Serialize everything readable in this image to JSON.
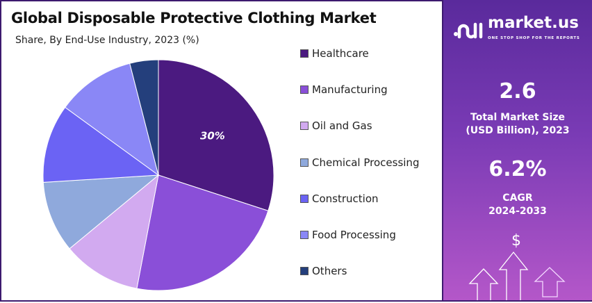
{
  "chart_data": {
    "type": "pie",
    "title": "Global Disposable Protective Clothing Market",
    "subtitle": "Share, By End-Use Industry, 2023 (%)",
    "categories": [
      "Healthcare",
      "Manufacturing",
      "Oil and Gas",
      "Chemical Processing",
      "Construction",
      "Food Processing",
      "Others"
    ],
    "values": [
      30,
      23,
      11,
      10,
      11,
      11,
      4
    ],
    "colors": [
      "#4b1a80",
      "#8a4fd8",
      "#d2aaf0",
      "#8fa9dc",
      "#6b63f4",
      "#8a87f6",
      "#243f7c"
    ],
    "data_labels": [
      {
        "category": "Healthcare",
        "text": "30%"
      }
    ],
    "legend_position": "right"
  },
  "panel": {
    "logo_name": "market.us",
    "logo_tagline": "ONE STOP SHOP FOR THE REPORTS",
    "market_size_value": "2.6",
    "market_size_label_1": "Total Market Size",
    "market_size_label_2": "(USD Billion), 2023",
    "cagr_value": "6.2%",
    "cagr_label_1": "CAGR",
    "cagr_label_2": "2024-2033",
    "dollar_symbol": "$"
  }
}
